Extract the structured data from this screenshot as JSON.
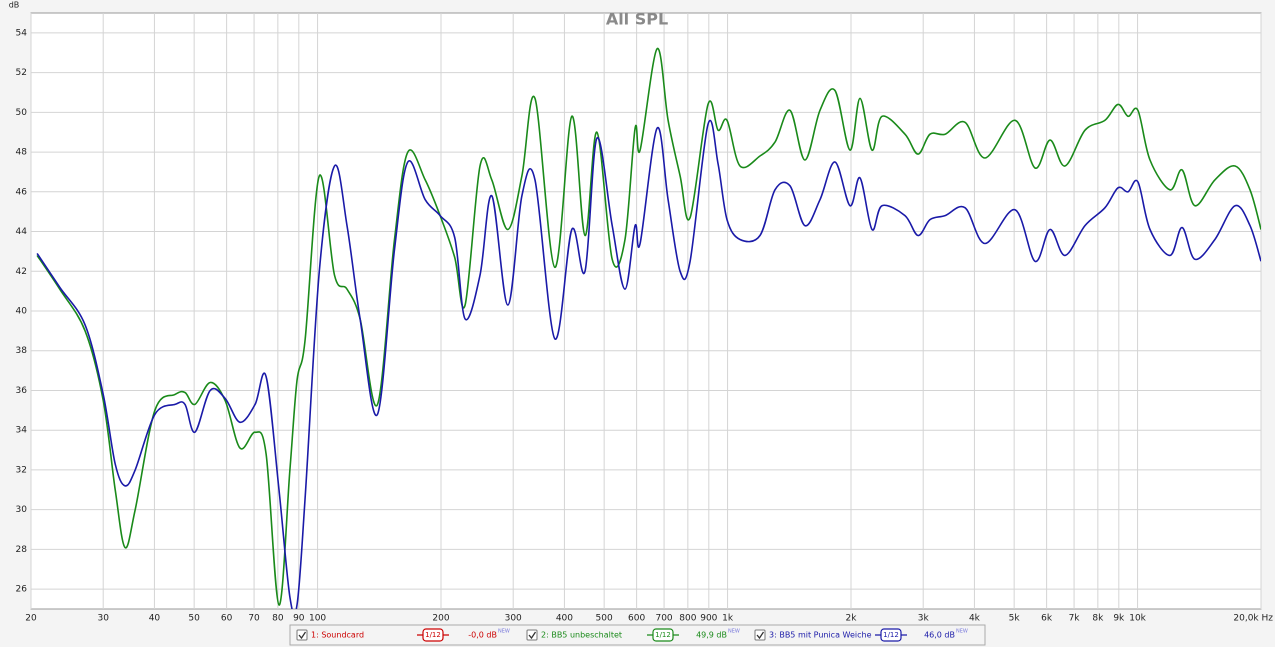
{
  "chart_data": {
    "type": "line",
    "title": "All SPL",
    "y_label": "dB",
    "xscale": "log",
    "grid": true,
    "xlim": [
      20,
      20000
    ],
    "ylim": [
      25,
      55
    ],
    "xticks": [
      20,
      30,
      40,
      50,
      60,
      70,
      80,
      90,
      100,
      200,
      300,
      400,
      500,
      600,
      700,
      800,
      900,
      {
        "value": 1000,
        "label": "1k"
      },
      {
        "value": 2000,
        "label": "2k"
      },
      {
        "value": 3000,
        "label": "3k"
      },
      {
        "value": 4000,
        "label": "4k"
      },
      {
        "value": 5000,
        "label": "5k"
      },
      {
        "value": 6000,
        "label": "6k"
      },
      {
        "value": 7000,
        "label": "7k"
      },
      {
        "value": 8000,
        "label": "8k"
      },
      {
        "value": 9000,
        "label": "9k"
      },
      {
        "value": 10000,
        "label": "10k"
      },
      {
        "value": 20000,
        "label": "20,0k Hz"
      }
    ],
    "yticks": [
      26,
      28,
      30,
      32,
      34,
      36,
      38,
      40,
      42,
      44,
      46,
      48,
      50,
      52,
      54
    ],
    "x": [
      20.7,
      23.5,
      27.1,
      30,
      32.1,
      33.9,
      35.9,
      40.1,
      44.9,
      47.5,
      50.2,
      54.7,
      59.5,
      64.7,
      70.4,
      74.9,
      80.5,
      85.6,
      89.1,
      93.2,
      101,
      110,
      118,
      127,
      140,
      154,
      166,
      183,
      199,
      216,
      229,
      249,
      266,
      291,
      315,
      339,
      379,
      417,
      449,
      480,
      523,
      562,
      595,
      612,
      673,
      716,
      766,
      810,
      896,
      948,
      997,
      1072,
      1200,
      1305,
      1420,
      1544,
      1680,
      1828,
      1989,
      2104,
      2250,
      2380,
      2708,
      2914,
      3117,
      3392,
      3793,
      4245,
      5024,
      5622,
      6115,
      6653,
      7444,
      8328,
      8960,
      9476,
      10020,
      10720,
      12000,
      12840,
      13800,
      15440,
      17290,
      18800,
      20000
    ],
    "series": [
      {
        "name": "1: Soundcard",
        "color": "#cc0000",
        "smoothing": "1/12",
        "level": "-0,0 dB",
        "badge": "NEW"
      },
      {
        "name": "2: BB5 unbeschaltet",
        "color": "#1a8a1a",
        "smoothing": "1/12",
        "level": "49,9 dB",
        "badge": "NEW",
        "values": [
          42.8,
          41.1,
          39.0,
          35.5,
          31.0,
          28.1,
          30.0,
          35.0,
          35.8,
          35.9,
          35.3,
          36.4,
          35.5,
          33.1,
          33.9,
          32.8,
          25.2,
          32.0,
          36.5,
          38.5,
          46.8,
          41.8,
          41.1,
          39.6,
          35.3,
          43.6,
          48.0,
          46.6,
          44.8,
          42.7,
          40.3,
          47.3,
          46.6,
          44.1,
          46.8,
          50.7,
          42.2,
          49.8,
          43.8,
          49.0,
          42.6,
          43.6,
          49.2,
          48.1,
          53.2,
          49.6,
          46.8,
          44.7,
          50.4,
          49.1,
          49.6,
          47.3,
          47.8,
          48.5,
          50.1,
          47.6,
          50.1,
          51.1,
          48.1,
          50.7,
          48.1,
          49.8,
          48.9,
          47.9,
          48.9,
          48.9,
          49.5,
          47.7,
          49.6,
          47.2,
          48.6,
          47.3,
          49.1,
          49.6,
          50.4,
          49.8,
          50.1,
          47.6,
          46.1,
          47.1,
          45.3,
          46.6,
          47.3,
          46.1,
          44.1
        ]
      },
      {
        "name": "3: BB5 mit Punica Weiche",
        "color": "#1a1aa8",
        "smoothing": "1/12",
        "level": "46,0 dB",
        "badge": "NEW",
        "values": [
          42.9,
          41.2,
          39.3,
          35.8,
          32.3,
          31.2,
          32.0,
          34.8,
          35.3,
          35.3,
          33.9,
          36.0,
          35.6,
          34.4,
          35.3,
          36.7,
          31.0,
          25.6,
          25.2,
          30.5,
          42.0,
          47.3,
          44.3,
          39.6,
          34.8,
          43.1,
          47.5,
          45.6,
          44.8,
          43.7,
          39.6,
          41.8,
          45.8,
          40.3,
          45.8,
          46.6,
          38.6,
          44.1,
          42.0,
          48.7,
          44.3,
          41.1,
          44.3,
          43.4,
          49.2,
          45.6,
          42.0,
          42.5,
          49.4,
          47.4,
          44.6,
          43.6,
          43.8,
          46.1,
          46.3,
          44.3,
          45.6,
          47.5,
          45.3,
          46.7,
          44.1,
          45.3,
          44.8,
          43.8,
          44.6,
          44.8,
          45.2,
          43.4,
          45.1,
          42.5,
          44.1,
          42.8,
          44.3,
          45.2,
          46.2,
          46.0,
          46.5,
          44.1,
          42.8,
          44.2,
          42.6,
          43.6,
          45.3,
          44.3,
          42.5
        ]
      }
    ]
  }
}
